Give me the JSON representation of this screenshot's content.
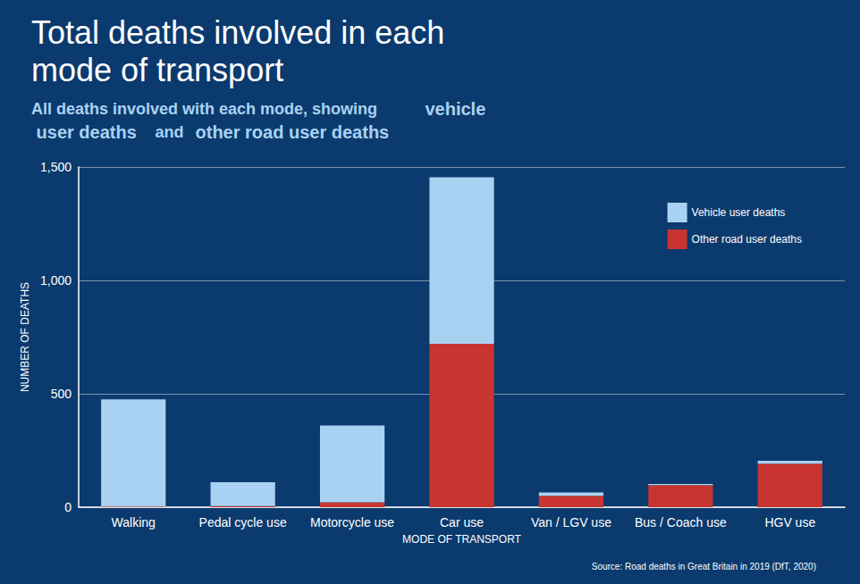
{
  "chart_data": {
    "type": "bar",
    "title": "Total deaths involved in each mode of transport",
    "subtitle": "All deaths involved with each mode, showing vehicle user deaths and other road user deaths",
    "source": "Source: Road deaths in Great Britain in 2019 (DfT, 2020)",
    "x_label": "MODE OF TRANSPORT",
    "y_label": "NUMBER OF DEATHS",
    "categories": [
      "Walking",
      "Pedal cycle use",
      "Motorcycle use",
      "Car use",
      "Van / LGV use",
      "Bus / Coach use",
      "HGV use"
    ],
    "series": [
      {
        "name": "Vehicle user deaths",
        "color": "#a9d2f2",
        "values": [
          472,
          105,
          338,
          735,
          15,
          5,
          13
        ]
      },
      {
        "name": "Other road user deaths",
        "color": "#c8342f",
        "values": [
          3,
          5,
          22,
          720,
          50,
          97,
          192
        ]
      }
    ],
    "ylim": [
      0,
      1500
    ],
    "yticks": [
      0,
      500,
      1000,
      1500
    ],
    "grid": true,
    "stacked": true,
    "legend": "top-right"
  }
}
